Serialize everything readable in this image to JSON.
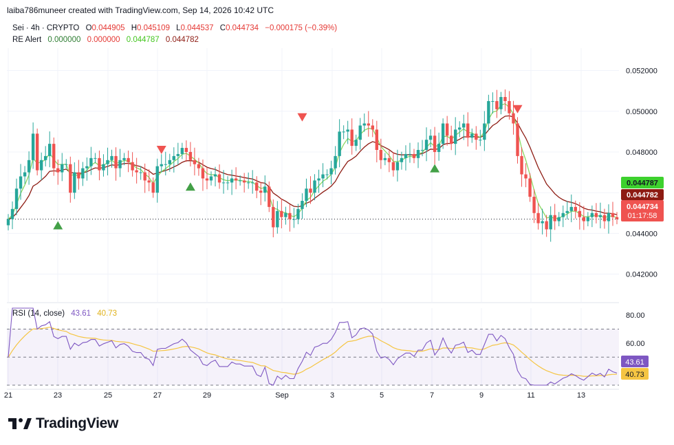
{
  "header": {
    "attribution": "laiba786muneer created with TradingView.com, Sep 14, 2026 10:42 UTC"
  },
  "legend": {
    "symbol": "Sei · 4h · CRYPTO",
    "o_label": "O",
    "o_value": "0.044905",
    "h_label": "H",
    "h_value": "0.045109",
    "l_label": "L",
    "l_value": "0.044537",
    "c_label": "C",
    "c_value": "0.044734",
    "change": "−0.000175 (−0.39%)"
  },
  "indicator": {
    "name": "RE Alert",
    "v1": "0.000000",
    "v2": "0.000000",
    "v3": "0.044787",
    "v4": "0.044782"
  },
  "rsi": {
    "name": "RSI (14, close)",
    "value": "43.61",
    "ma_value": "40.73"
  },
  "price_badges": {
    "fast_ma": "0.044787",
    "slow_ma": "0.044782",
    "last": "0.044734",
    "countdown": "01:17:58"
  },
  "footer": {
    "brand": "TradingView"
  },
  "colors": {
    "up": "#26a69a",
    "down": "#ef5350",
    "fast_ma": "#8bd860",
    "slow_ma": "#8d1b12",
    "rsi_line": "#7e57c2",
    "rsi_ma": "#f5c542",
    "signal_up": "#43a047",
    "signal_down": "#ef5350"
  },
  "chart_data": [
    {
      "type": "candlestick",
      "title": "Sei · 4h · CRYPTO",
      "x_ticks": [
        "21",
        "23",
        "25",
        "27",
        "29",
        "Sep",
        "3",
        "5",
        "7",
        "9",
        "11",
        "13"
      ],
      "y_ticks": [
        "0.042000",
        "0.044000",
        "0.046000",
        "0.048000",
        "0.050000",
        "0.052000"
      ],
      "ylim": [
        0.0406,
        0.0531
      ],
      "grid": true,
      "close_series": [
        0.0447,
        0.0452,
        0.0462,
        0.0468,
        0.047,
        0.0476,
        0.0489,
        0.0471,
        0.0476,
        0.0478,
        0.0484,
        0.0472,
        0.047,
        0.0474,
        0.0474,
        0.046,
        0.047,
        0.0467,
        0.0472,
        0.0473,
        0.0477,
        0.0477,
        0.0471,
        0.0474,
        0.0476,
        0.0478,
        0.0472,
        0.0476,
        0.0477,
        0.0475,
        0.0471,
        0.047,
        0.047,
        0.0466,
        0.0465,
        0.046,
        0.0473,
        0.0474,
        0.0474,
        0.0476,
        0.0478,
        0.0479,
        0.0482,
        0.048,
        0.0476,
        0.0474,
        0.0472,
        0.0467,
        0.0466,
        0.0468,
        0.0469,
        0.0465,
        0.0465,
        0.0465,
        0.0467,
        0.0466,
        0.0466,
        0.0465,
        0.0465,
        0.0465,
        0.0461,
        0.046,
        0.0463,
        0.0453,
        0.0443,
        0.0451,
        0.0448,
        0.045,
        0.0447,
        0.0447,
        0.0452,
        0.0456,
        0.0462,
        0.046,
        0.0466,
        0.0467,
        0.0469,
        0.0469,
        0.0472,
        0.0478,
        0.049,
        0.049,
        0.0491,
        0.0483,
        0.0486,
        0.0493,
        0.0494,
        0.0493,
        0.0491,
        0.0481,
        0.0476,
        0.0477,
        0.0475,
        0.0471,
        0.0475,
        0.0477,
        0.0479,
        0.0479,
        0.0477,
        0.0481,
        0.0481,
        0.0486,
        0.0488,
        0.048,
        0.0484,
        0.0494,
        0.0488,
        0.0484,
        0.0491,
        0.0492,
        0.0494,
        0.0487,
        0.0489,
        0.0486,
        0.0486,
        0.0494,
        0.0505,
        0.0505,
        0.0501,
        0.0507,
        0.0505,
        0.0499,
        0.0494,
        0.0478,
        0.0469,
        0.0467,
        0.0458,
        0.045,
        0.0445,
        0.0446,
        0.0442,
        0.0449,
        0.0446,
        0.0448,
        0.045,
        0.0451,
        0.0453,
        0.0451,
        0.0448,
        0.0446,
        0.0448,
        0.045,
        0.0448,
        0.0449,
        0.0446,
        0.045,
        0.0448,
        0.0447
      ]
    },
    {
      "type": "line",
      "title": "RSI (14, close)",
      "y_ticks": [
        "60.00",
        "80.00"
      ],
      "ylim": [
        30,
        85
      ],
      "band": [
        30,
        70
      ],
      "last_rsi": 43.61,
      "last_ma": 40.73
    }
  ]
}
